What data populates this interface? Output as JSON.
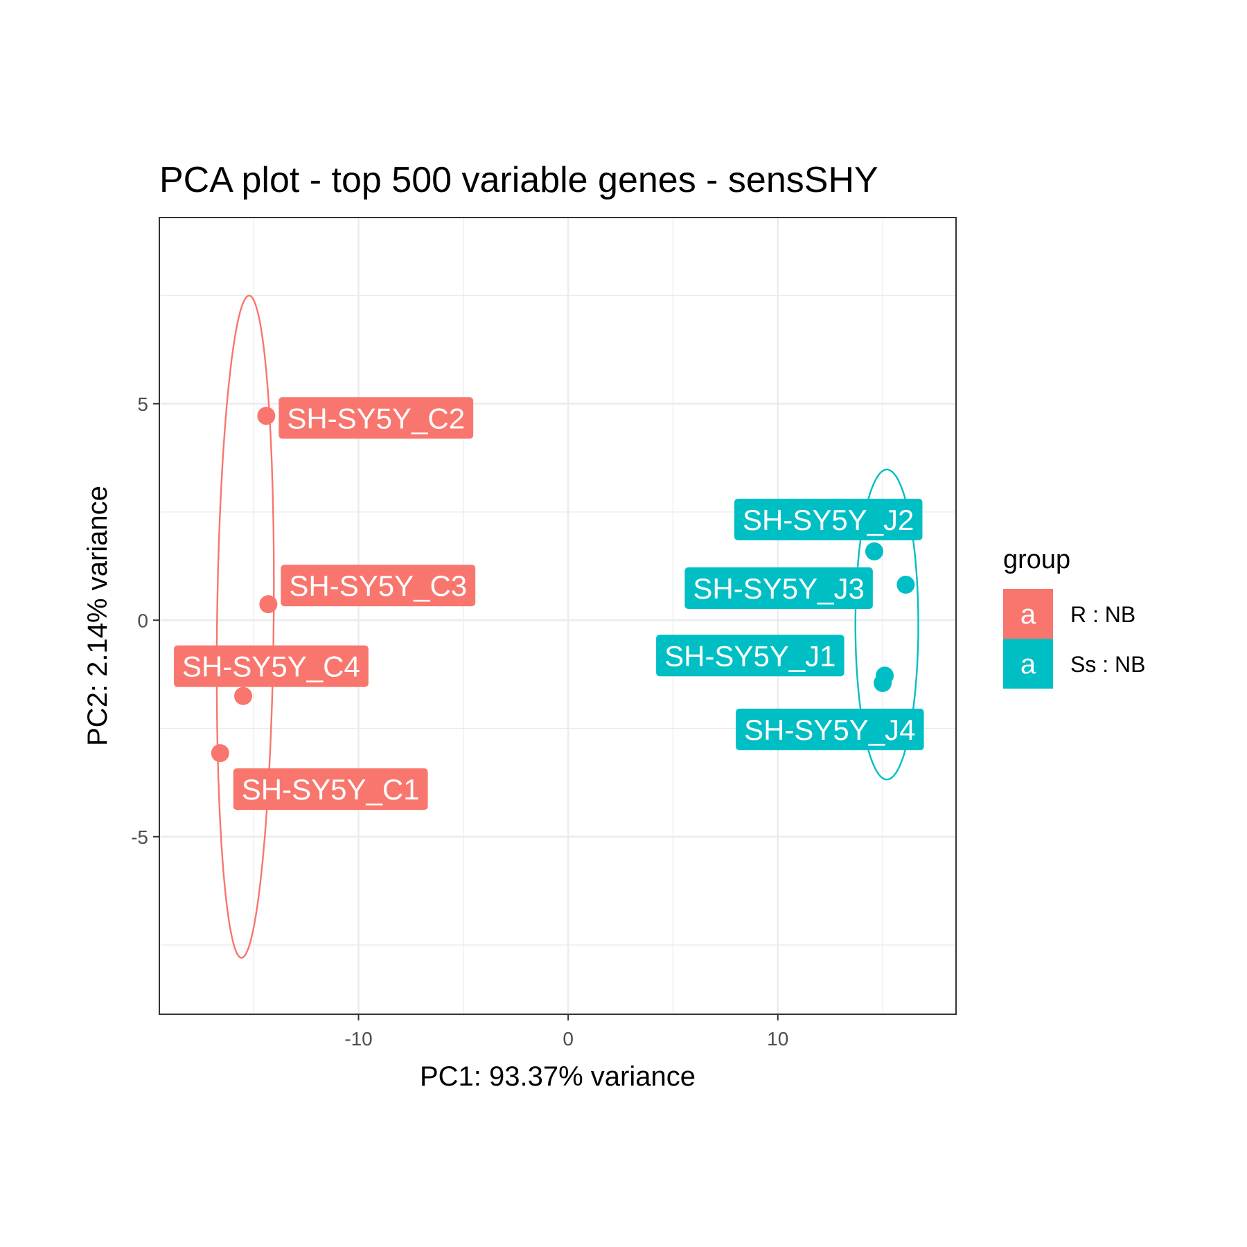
{
  "chart_data": {
    "type": "scatter",
    "title": "PCA plot - top 500 variable genes - sensSHY",
    "xlabel": "PC1: 93.37% variance",
    "ylabel": "PC2: 2.14% variance",
    "xlim": [
      -19.5,
      18.5
    ],
    "ylim": [
      -9.1,
      9.3
    ],
    "xticks": [
      -10,
      0,
      10
    ],
    "xtick_labels": [
      "-10",
      "0",
      "10"
    ],
    "yticks": [
      -5,
      0,
      5
    ],
    "ytick_labels": [
      "-5",
      "0",
      "5"
    ],
    "grid": true,
    "legend": {
      "title": "group",
      "position": "right",
      "key_glyph": "a",
      "entries": [
        "R : NB",
        "Ss : NB"
      ]
    },
    "colors": [
      "#F8766D",
      "#00BFC4"
    ],
    "series": [
      {
        "name": "R : NB",
        "points": [
          {
            "label": "SH-SY5Y_C2",
            "x": -14.4,
            "y": 4.72
          },
          {
            "label": "SH-SY5Y_C3",
            "x": -14.3,
            "y": 0.37
          },
          {
            "label": "SH-SY5Y_C4",
            "x": -15.5,
            "y": -1.75
          },
          {
            "label": "SH-SY5Y_C1",
            "x": -16.6,
            "y": -3.07
          }
        ],
        "ellipse": {
          "center": [
            -15.4,
            -0.15
          ],
          "rx": 7.65,
          "ry": 1.35,
          "rotation_deg": 88.6
        }
      },
      {
        "name": "Ss : NB",
        "points": [
          {
            "label": "SH-SY5Y_J2",
            "x": 14.6,
            "y": 1.59
          },
          {
            "label": "SH-SY5Y_J3",
            "x": 16.1,
            "y": 0.82
          },
          {
            "label": "SH-SY5Y_J1",
            "x": 15.1,
            "y": -1.28
          },
          {
            "label": "SH-SY5Y_J4",
            "x": 15.0,
            "y": -1.45
          }
        ],
        "ellipse": {
          "center": [
            15.2,
            -0.1
          ],
          "rx": 3.58,
          "ry": 1.5,
          "rotation_deg": 90
        }
      }
    ]
  }
}
